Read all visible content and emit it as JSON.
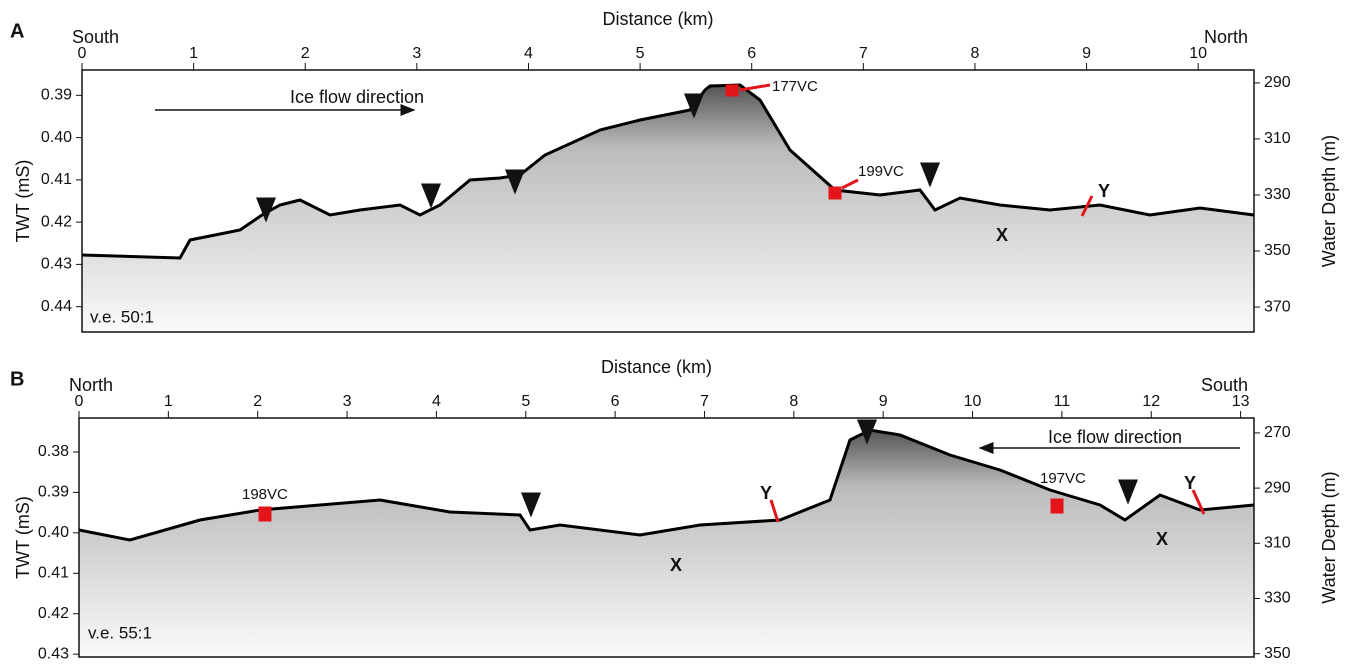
{
  "chart_data": [
    {
      "type": "profile",
      "panel": "A",
      "xlabel": "Distance (km)",
      "ylabel": "TWT (mS)",
      "y2label": "Water Depth (m)",
      "left_label": "South",
      "right_label": "North",
      "xlim": [
        0,
        10.5
      ],
      "xticks": [
        0,
        1,
        2,
        3,
        4,
        5,
        6,
        7,
        8,
        9,
        10
      ],
      "ylim": [
        0.446,
        0.384
      ],
      "yticks": [
        0.39,
        {
          "value": 0.4,
          "label": "0.40"
        },
        0.41,
        0.42,
        0.43,
        0.44
      ],
      "y2lim": [
        378.9,
        285.4
      ],
      "y2ticks": [
        290,
        310,
        330,
        350,
        370
      ],
      "annotations": [
        "Ice flow direction",
        "177VC",
        "199VC",
        "Y",
        "X",
        "v.e. 50:1"
      ]
    },
    {
      "type": "profile",
      "panel": "B",
      "xlabel": "Distance (km)",
      "ylabel": "TWT (mS)",
      "y2label": "Water Depth (m)",
      "left_label": "North",
      "right_label": "South",
      "xlim": [
        0,
        13.15
      ],
      "xticks": [
        0,
        1,
        2,
        3,
        4,
        5,
        6,
        7,
        8,
        9,
        10,
        11,
        12,
        13
      ],
      "ylim": [
        0.4307,
        0.3716
      ],
      "yticks": [
        0.38,
        0.39,
        {
          "value": 0.4,
          "label": "0.40"
        },
        0.41,
        0.42,
        0.43
      ],
      "y2lim": [
        351.2,
        264.6
      ],
      "y2ticks": [
        270,
        290,
        310,
        330,
        350
      ],
      "annotations": [
        "198VC",
        "Y",
        "X",
        "Ice flow direction",
        "197VC",
        "Y",
        "X",
        "v.e. 55:1"
      ]
    }
  ]
}
